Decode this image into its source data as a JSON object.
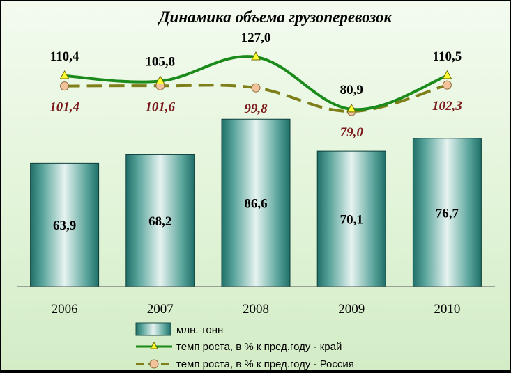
{
  "chart_data": {
    "type": "bar",
    "title": "Динамика объема грузоперевозок",
    "categories": [
      "2006",
      "2007",
      "2008",
      "2009",
      "2010"
    ],
    "bar_series": {
      "name": "млн. тонн",
      "values": [
        63.9,
        68.2,
        86.6,
        70.1,
        76.7
      ],
      "labels": [
        "63,9",
        "68,2",
        "86,6",
        "70,1",
        "76,7"
      ],
      "color": "#2f8f86"
    },
    "line_series": [
      {
        "name": "темп роста, в % к пред.году - край",
        "values": [
          110.4,
          105.8,
          127.0,
          80.9,
          110.5
        ],
        "labels": [
          "110,4",
          "105,8",
          "127,0",
          "80,9",
          "110,5"
        ],
        "color": "#1a8a1a",
        "marker": "triangle",
        "marker_color": "#ffff33",
        "style": "solid"
      },
      {
        "name": "темп роста, в % к пред.году - Россия",
        "values": [
          101.4,
          101.6,
          99.8,
          79.0,
          102.3
        ],
        "labels": [
          "101,4",
          "101,6",
          "99,8",
          "79,0",
          "102,3"
        ],
        "color": "#7f7f1a",
        "marker": "circle",
        "marker_color": "#f2c29a",
        "style": "dashed",
        "label_color": "#7a1a1a"
      }
    ],
    "grid": false,
    "legend_position": "bottom"
  }
}
